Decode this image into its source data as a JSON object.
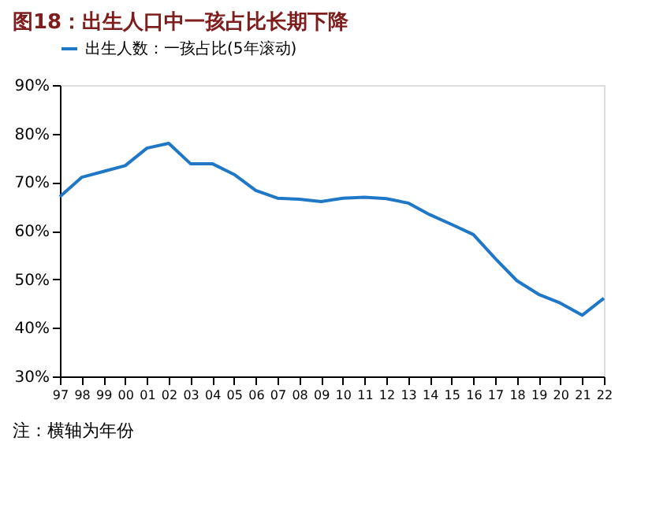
{
  "chart_data": {
    "type": "line",
    "title": "图18：出生人口中一孩占比长期下降",
    "categories": [
      "97",
      "98",
      "99",
      "00",
      "01",
      "02",
      "03",
      "04",
      "05",
      "06",
      "07",
      "08",
      "09",
      "10",
      "11",
      "12",
      "13",
      "14",
      "15",
      "16",
      "17",
      "18",
      "19",
      "20",
      "21",
      "22"
    ],
    "series": [
      {
        "name": "出生人数：一孩占比(5年滚动)",
        "color": "#1f77c8",
        "values": [
          67,
          71,
          72.2,
          73.4,
          77,
          78,
          73.8,
          73.8,
          71.6,
          68.3,
          66.7,
          66.5,
          66,
          66.7,
          66.9,
          66.6,
          65.7,
          63.3,
          61.3,
          59.2,
          54.3,
          49.7,
          46.9,
          45.1,
          42.6,
          46.1
        ]
      }
    ],
    "ylim": [
      30,
      90
    ],
    "yticks": [
      {
        "value": 30,
        "label": "30%"
      },
      {
        "value": 40,
        "label": "40%"
      },
      {
        "value": 50,
        "label": "50%"
      },
      {
        "value": 60,
        "label": "60%"
      },
      {
        "value": 70,
        "label": "70%"
      },
      {
        "value": 80,
        "label": "80%"
      },
      {
        "value": 90,
        "label": "90%"
      }
    ],
    "grid": false,
    "legend": "top",
    "marker": "none",
    "line_style": "solid",
    "annotations": [
      "注：横轴为年份"
    ]
  }
}
